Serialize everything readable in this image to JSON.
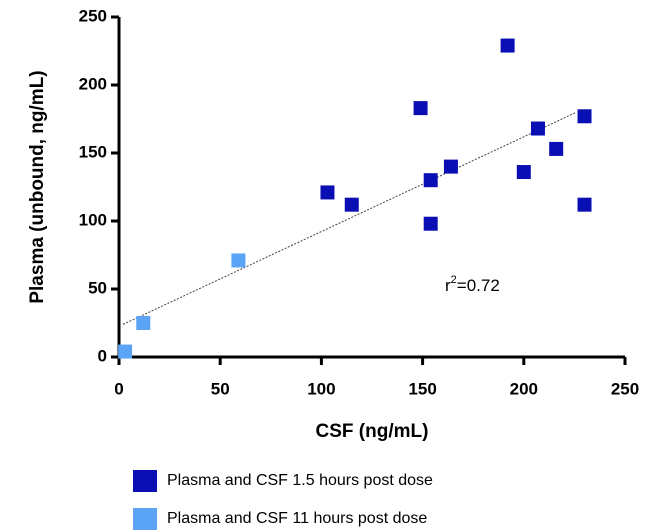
{
  "chart_data": {
    "type": "scatter",
    "xlabel": "CSF (ng/mL)",
    "ylabel": "Plasma (unbound, ng/mL)",
    "xlim": [
      0,
      250
    ],
    "ylim": [
      0,
      250
    ],
    "xticks": [
      0,
      50,
      100,
      150,
      200,
      250
    ],
    "yticks": [
      0,
      50,
      100,
      150,
      200,
      250
    ],
    "grid": false,
    "legend_position": "bottom",
    "series": [
      {
        "name": "Plasma and CSF 1.5 hours post dose",
        "color": "#0a0fb4",
        "x": [
          103,
          115,
          149,
          154,
          154,
          164,
          192,
          200,
          207,
          216,
          230,
          230
        ],
        "y": [
          121,
          112,
          183,
          130,
          98,
          140,
          229,
          136,
          168,
          153,
          177,
          112
        ]
      },
      {
        "name": "Plasma and CSF 11 hours post dose",
        "color": "#5aa3f5",
        "x": [
          3,
          12,
          59
        ],
        "y": [
          4,
          25,
          71
        ]
      }
    ],
    "trendline": {
      "x": [
        2,
        226
      ],
      "y": [
        24,
        180
      ]
    },
    "annotation": [
      "r",
      "2",
      "=0.72"
    ]
  }
}
